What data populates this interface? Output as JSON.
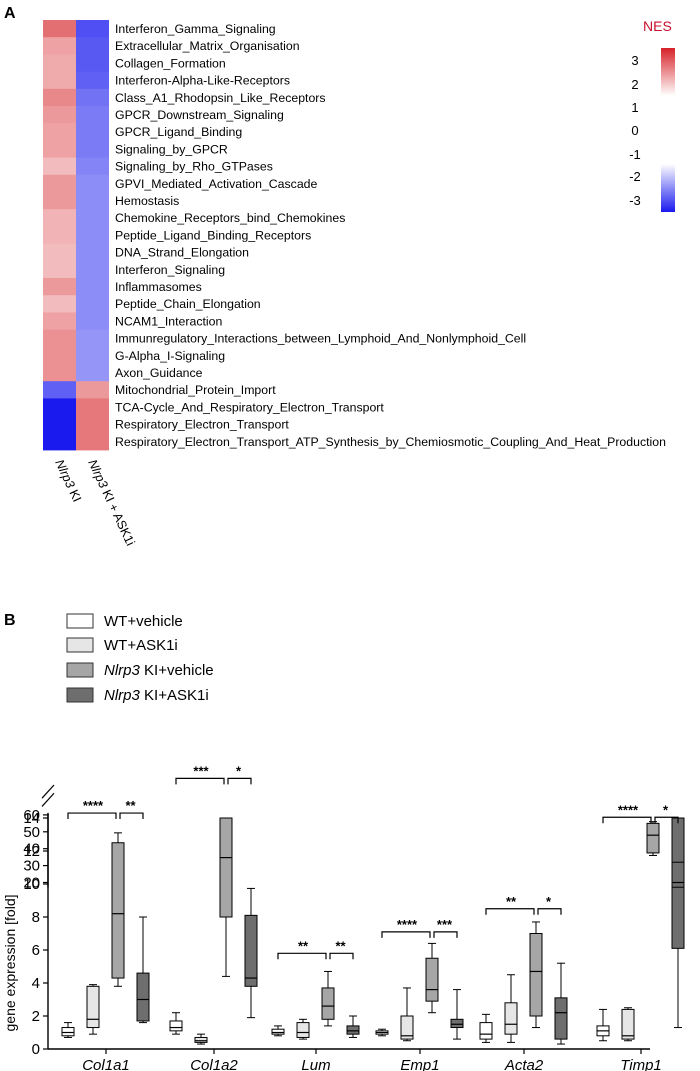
{
  "panel_a": {
    "label": "A",
    "columns": [
      "Nlrp3 KI",
      "Nlrp3 KI + ASK1i"
    ],
    "colorbar": {
      "title": "NES",
      "ticks": [
        "3",
        "2",
        "1",
        "0",
        "-1",
        "-2",
        "-3"
      ],
      "colors": {
        "high": "#d62228",
        "low": "#1a1aef",
        "mid": "#ffffff"
      }
    }
  },
  "panel_b": {
    "label": "B",
    "legend": [
      {
        "italic": "",
        "label": "WT+vehicle",
        "fill": "#ffffff"
      },
      {
        "italic": "",
        "label": "WT+ASK1i",
        "fill": "#e6e6e6"
      },
      {
        "italic": "Nlrp3",
        "label": " KI+vehicle",
        "fill": "#a6a6a6"
      },
      {
        "italic": "Nlrp3",
        "label": " KI+ASK1i",
        "fill": "#6e6e6e"
      }
    ],
    "ylabel": "gene expression [fold]",
    "lower_ticks": [
      "0",
      "2",
      "4",
      "6",
      "8",
      "10",
      "12",
      "14"
    ],
    "upper_ticks": [
      "20",
      "30",
      "40",
      "50",
      "60"
    ]
  },
  "chart_data": [
    {
      "type": "heatmap",
      "title": "",
      "colorbar_label": "NES",
      "colorbar_range": [
        -3,
        3
      ],
      "columns": [
        "Nlrp3 KI",
        "Nlrp3 KI + ASK1i"
      ],
      "rows": [
        "Interferon_Gamma_Signaling",
        "Extracellular_Matrix_Organisation",
        "Collagen_Formation",
        "Interferon-Alpha-Like-Receptors",
        "Class_A1_Rhodopsin_Like_Receptors",
        "GPCR_Downstream_Signaling",
        "GPCR_Ligand_Binding",
        "Signaling_by_GPCR",
        "Signaling_by_Rho_GTPases",
        "GPVI_Mediated_Activation_Cascade",
        "Hemostasis",
        "Chemokine_Receptors_bind_Chemokines",
        "Peptide_Ligand_Binding_Receptors",
        "DNA_Strand_Elongation",
        "Interferon_Signaling",
        "Inflammasomes",
        "Peptide_Chain_Elongation",
        "NCAM1_Interaction",
        "Immunregulatory_Interactions_between_Lymphoid_And_Nonlymphoid_Cell",
        "G-Alpha_I-Signaling",
        "Axon_Guidance",
        "Mitochondrial_Protein_Import",
        "TCA-Cycle_And_Respiratory_Electron_Transport",
        "Respiratory_Electron_Transport",
        "Respiratory_Electron_Transport_ATP_Synthesis_by_Chemiosmotic_Coupling_And_Heat_Production"
      ],
      "values": [
        [
          2.1,
          -2.4
        ],
        [
          1.5,
          -2.3
        ],
        [
          1.4,
          -2.3
        ],
        [
          1.4,
          -2.2
        ],
        [
          1.8,
          -2.0
        ],
        [
          1.6,
          -1.9
        ],
        [
          1.5,
          -1.9
        ],
        [
          1.5,
          -1.9
        ],
        [
          1.2,
          -1.8
        ],
        [
          1.6,
          -1.7
        ],
        [
          1.6,
          -1.7
        ],
        [
          1.3,
          -1.7
        ],
        [
          1.3,
          -1.7
        ],
        [
          1.2,
          -1.7
        ],
        [
          1.2,
          -1.7
        ],
        [
          1.6,
          -1.7
        ],
        [
          1.2,
          -1.7
        ],
        [
          1.5,
          -1.7
        ],
        [
          1.7,
          -1.6
        ],
        [
          1.7,
          -1.6
        ],
        [
          1.7,
          -1.6
        ],
        [
          -2.2,
          1.6
        ],
        [
          -3.0,
          2.0
        ],
        [
          -3.0,
          2.0
        ],
        [
          -3.0,
          2.0
        ]
      ]
    },
    {
      "type": "box",
      "title": "",
      "xlabel": "",
      "ylabel": "gene expression [fold]",
      "yscale": "broken",
      "ylim_lower": [
        0,
        14
      ],
      "ylim_upper": [
        15,
        60
      ],
      "categories": [
        "Col1a1",
        "Col1a2",
        "Lum",
        "Emp1",
        "Acta2",
        "Timp1"
      ],
      "series": [
        {
          "name": "WT+vehicle",
          "color": "#ffffff",
          "boxes": [
            {
              "min": 0.7,
              "q1": 0.8,
              "median": 1.0,
              "q3": 1.3,
              "max": 1.6
            },
            {
              "min": 0.9,
              "q1": 1.1,
              "median": 1.3,
              "q3": 1.7,
              "max": 2.2
            },
            {
              "min": 0.8,
              "q1": 0.9,
              "median": 1.0,
              "q3": 1.2,
              "max": 1.4
            },
            {
              "min": 0.8,
              "q1": 0.9,
              "median": 1.0,
              "q3": 1.1,
              "max": 1.2
            },
            {
              "min": 0.4,
              "q1": 0.6,
              "median": 0.9,
              "q3": 1.6,
              "max": 2.1
            },
            {
              "min": 0.5,
              "q1": 0.8,
              "median": 1.1,
              "q3": 1.4,
              "max": 2.4
            }
          ]
        },
        {
          "name": "WT+ASK1i",
          "color": "#e6e6e6",
          "boxes": [
            {
              "min": 0.9,
              "q1": 1.3,
              "median": 1.8,
              "q3": 3.8,
              "max": 3.9
            },
            {
              "min": 0.3,
              "q1": 0.4,
              "median": 0.5,
              "q3": 0.7,
              "max": 0.9
            },
            {
              "min": 0.6,
              "q1": 0.7,
              "median": 1.0,
              "q3": 1.6,
              "max": 1.8
            },
            {
              "min": 0.5,
              "q1": 0.6,
              "median": 0.8,
              "q3": 2.0,
              "max": 3.7
            },
            {
              "min": 0.4,
              "q1": 0.9,
              "median": 1.5,
              "q3": 2.8,
              "max": 4.5
            },
            {
              "min": 0.5,
              "q1": 0.6,
              "median": 0.8,
              "q3": 2.4,
              "max": 2.5
            }
          ]
        },
        {
          "name": "Nlrp3 KI+vehicle",
          "color": "#a6a6a6",
          "boxes": [
            {
              "min": 3.8,
              "q1": 4.3,
              "median": 8.2,
              "q3": 12.5,
              "max": 13.1
            },
            {
              "min": 4.4,
              "q1": 8.0,
              "median": 11.6,
              "q3": 14.0,
              "max": 17.0
            },
            {
              "min": 1.4,
              "q1": 1.8,
              "median": 2.6,
              "q3": 3.7,
              "max": 4.7
            },
            {
              "min": 2.2,
              "q1": 2.9,
              "median": 3.6,
              "q3": 5.5,
              "max": 6.4
            },
            {
              "min": 1.3,
              "q1": 2.0,
              "median": 4.7,
              "q3": 7.0,
              "max": 7.7
            },
            {
              "min": 36.0,
              "q1": 37.5,
              "median": 48.0,
              "q3": 55.0,
              "max": 56.0
            }
          ]
        },
        {
          "name": "Nlrp3 KI+ASK1i",
          "color": "#6e6e6e",
          "boxes": [
            {
              "min": 1.6,
              "q1": 1.7,
              "median": 3.0,
              "q3": 4.6,
              "max": 8.0
            },
            {
              "min": 1.9,
              "q1": 3.8,
              "median": 4.3,
              "q3": 8.1,
              "max": 16.5
            },
            {
              "min": 0.7,
              "q1": 0.9,
              "median": 1.1,
              "q3": 1.4,
              "max": 2.0
            },
            {
              "min": 0.6,
              "q1": 1.3,
              "median": 1.5,
              "q3": 1.8,
              "max": 3.6
            },
            {
              "min": 0.3,
              "q1": 0.6,
              "median": 2.2,
              "q3": 3.1,
              "max": 5.2
            },
            {
              "min": 1.3,
              "q1": 6.1,
              "median": 20.0,
              "q3": 32.0,
              "max": 38.0
            }
          ]
        }
      ],
      "significance": [
        {
          "category": "Col1a1",
          "from": "WT+vehicle",
          "to": "Nlrp3 KI+vehicle",
          "label": "****"
        },
        {
          "category": "Col1a1",
          "from": "Nlrp3 KI+vehicle",
          "to": "Nlrp3 KI+ASK1i",
          "label": "**"
        },
        {
          "category": "Col1a2",
          "from": "WT+vehicle",
          "to": "Nlrp3 KI+vehicle",
          "label": "***"
        },
        {
          "category": "Col1a2",
          "from": "Nlrp3 KI+vehicle",
          "to": "Nlrp3 KI+ASK1i",
          "label": "*"
        },
        {
          "category": "Lum",
          "from": "WT+vehicle",
          "to": "Nlrp3 KI+vehicle",
          "label": "**"
        },
        {
          "category": "Lum",
          "from": "Nlrp3 KI+vehicle",
          "to": "Nlrp3 KI+ASK1i",
          "label": "**"
        },
        {
          "category": "Emp1",
          "from": "WT+vehicle",
          "to": "Nlrp3 KI+vehicle",
          "label": "****"
        },
        {
          "category": "Emp1",
          "from": "Nlrp3 KI+vehicle",
          "to": "Nlrp3 KI+ASK1i",
          "label": "***"
        },
        {
          "category": "Acta2",
          "from": "WT+vehicle",
          "to": "Nlrp3 KI+vehicle",
          "label": "**"
        },
        {
          "category": "Acta2",
          "from": "Nlrp3 KI+vehicle",
          "to": "Nlrp3 KI+ASK1i",
          "label": "*"
        },
        {
          "category": "Timp1",
          "from": "WT+vehicle",
          "to": "Nlrp3 KI+vehicle",
          "label": "****"
        },
        {
          "category": "Timp1",
          "from": "Nlrp3 KI+vehicle",
          "to": "Nlrp3 KI+ASK1i",
          "label": "*"
        }
      ]
    }
  ]
}
